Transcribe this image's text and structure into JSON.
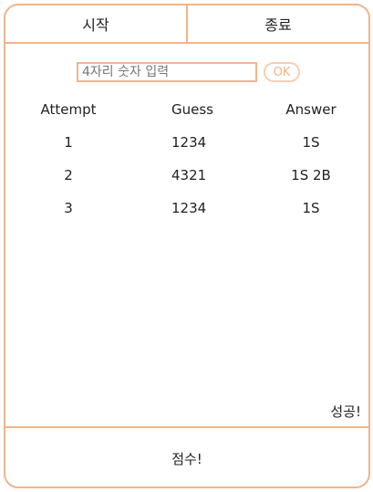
{
  "header": {
    "start_label": "시작",
    "end_label": "종료"
  },
  "input": {
    "placeholder": "4자리 숫자 입력",
    "value": "",
    "ok_label": "OK"
  },
  "table": {
    "columns": [
      "Attempt",
      "Guess",
      "Answer"
    ],
    "rows": [
      {
        "attempt": "1",
        "guess": "1234",
        "answer": "1S"
      },
      {
        "attempt": "2",
        "guess": "4321",
        "answer": "1S 2B"
      },
      {
        "attempt": "3",
        "guess": "1234",
        "answer": "1S"
      }
    ]
  },
  "status": {
    "message": "성공!"
  },
  "footer": {
    "score_label": "점수!"
  },
  "colors": {
    "accent_border": "#f2b48a",
    "ok_button_border": "#f9cdb3"
  }
}
